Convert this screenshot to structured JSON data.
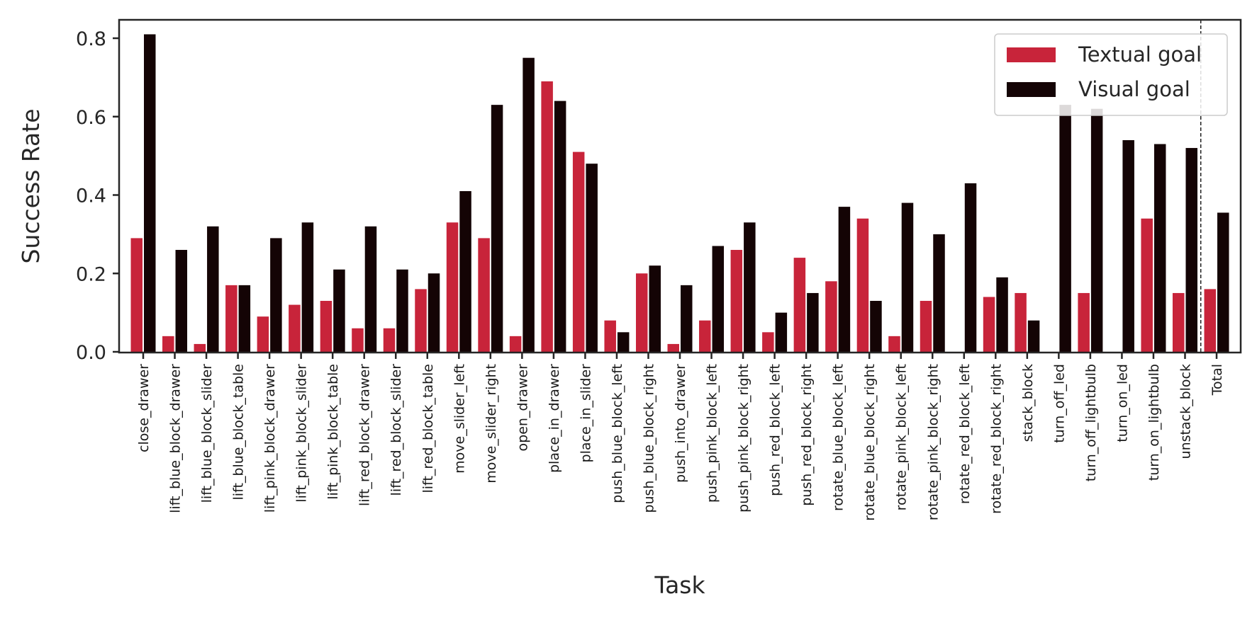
{
  "chart_data": {
    "type": "bar",
    "title": "",
    "xlabel": "Task",
    "ylabel": "Success Rate",
    "ylim": [
      0,
      0.85
    ],
    "yticks": [
      "0.0",
      "0.2",
      "0.4",
      "0.6",
      "0.8"
    ],
    "grid": false,
    "legend_position": "top-right",
    "categories": [
      "close_drawer",
      "lift_blue_block_drawer",
      "lift_blue_block_slider",
      "lift_blue_block_table",
      "lift_pink_block_drawer",
      "lift_pink_block_slider",
      "lift_pink_block_table",
      "lift_red_block_drawer",
      "lift_red_block_slider",
      "lift_red_block_table",
      "move_slider_left",
      "move_slider_right",
      "open_drawer",
      "place_in_drawer",
      "place_in_slider",
      "push_blue_block_left",
      "push_blue_block_right",
      "push_into_drawer",
      "push_pink_block_left",
      "push_pink_block_right",
      "push_red_block_left",
      "push_red_block_right",
      "rotate_blue_block_left",
      "rotate_blue_block_right",
      "rotate_pink_block_left",
      "rotate_pink_block_right",
      "rotate_red_block_left",
      "rotate_red_block_right",
      "stack_block",
      "turn_off_led",
      "turn_off_lightbulb",
      "turn_on_led",
      "turn_on_lightbulb",
      "unstack_block",
      "Total"
    ],
    "separator_before_category": "Total",
    "series": [
      {
        "name": "Textual goal",
        "color": "#c8243a",
        "values": [
          0.29,
          0.04,
          0.02,
          0.17,
          0.09,
          0.12,
          0.13,
          0.06,
          0.06,
          0.16,
          0.33,
          0.29,
          0.04,
          0.69,
          0.51,
          0.08,
          0.2,
          0.02,
          0.08,
          0.26,
          0.05,
          0.24,
          0.18,
          0.34,
          0.04,
          0.13,
          0.0,
          0.14,
          0.15,
          0.0,
          0.15,
          0.0,
          0.34,
          0.15,
          0.16
        ]
      },
      {
        "name": "Visual goal",
        "color": "#140405",
        "values": [
          0.81,
          0.26,
          0.32,
          0.17,
          0.29,
          0.33,
          0.21,
          0.32,
          0.21,
          0.2,
          0.41,
          0.63,
          0.75,
          0.64,
          0.48,
          0.05,
          0.22,
          0.17,
          0.27,
          0.33,
          0.1,
          0.15,
          0.37,
          0.13,
          0.38,
          0.3,
          0.43,
          0.19,
          0.08,
          0.63,
          0.62,
          0.54,
          0.53,
          0.52,
          0.355
        ]
      }
    ]
  }
}
